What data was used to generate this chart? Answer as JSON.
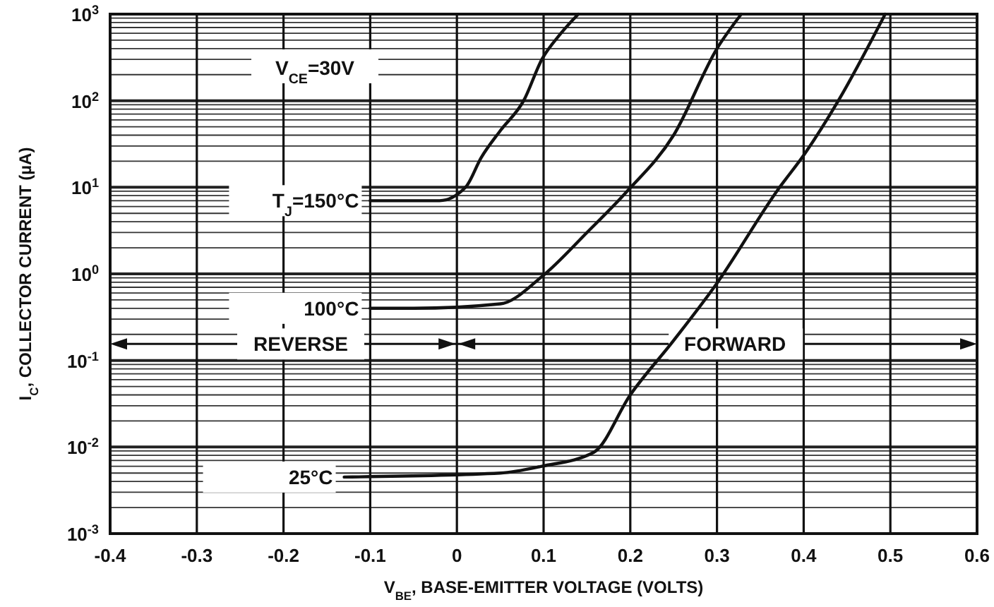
{
  "chart_data": {
    "type": "line",
    "xlabel": "V$_{BE}$, BASE-EMITTER VOLTAGE (VOLTS)",
    "ylabel": "I$_{C}$, COLLECTOR CURRENT (µA)",
    "log": "y",
    "grid": true,
    "line_style": "solid",
    "marker": "none",
    "xlim": [
      -0.4,
      0.6
    ],
    "xticks": [
      -0.4,
      -0.3,
      -0.2,
      -0.1,
      0,
      0.1,
      0.2,
      0.3,
      0.4,
      0.5,
      0.6
    ],
    "ylim": [
      0.001,
      1000
    ],
    "yticks": [
      {
        "value": 0.001,
        "label": "10$^{-3}$"
      },
      {
        "value": 0.01,
        "label": "10$^{-2}$"
      },
      {
        "value": 0.1,
        "label": "10$^{-1}$"
      },
      {
        "value": 1,
        "label": "10$^{0}$"
      },
      {
        "value": 10,
        "label": "10$^{1}$"
      },
      {
        "value": 100,
        "label": "10$^{2}$"
      },
      {
        "value": 1000,
        "label": "10$^{3}$"
      }
    ],
    "series": [
      {
        "name": "T$_{J}$=150°C",
        "color": "#111111",
        "x": [
          -0.1,
          -0.02,
          0.01,
          0.028,
          0.05,
          0.077,
          0.098,
          0.12,
          0.14
        ],
        "values": [
          7,
          7,
          10,
          22,
          45,
          100,
          300,
          600,
          1000
        ]
      },
      {
        "name": "100°C",
        "color": "#111111",
        "x": [
          -0.1,
          -0.05,
          0.05,
          0.098,
          0.15,
          0.195,
          0.25,
          0.3,
          0.328
        ],
        "values": [
          0.4,
          0.4,
          0.45,
          0.93,
          3,
          8.7,
          40,
          400,
          1000
        ]
      },
      {
        "name": "25°C",
        "color": "#111111",
        "x": [
          -0.13,
          0.05,
          0.098,
          0.158,
          0.2,
          0.25,
          0.3,
          0.37,
          0.402,
          0.44,
          0.494
        ],
        "values": [
          0.0045,
          0.005,
          0.006,
          0.0087,
          0.04,
          0.17,
          0.78,
          9.3,
          25,
          100,
          1000
        ]
      }
    ],
    "annotations": [
      "V$_{CE}$=30V",
      "REVERSE",
      "FORWARD"
    ]
  }
}
